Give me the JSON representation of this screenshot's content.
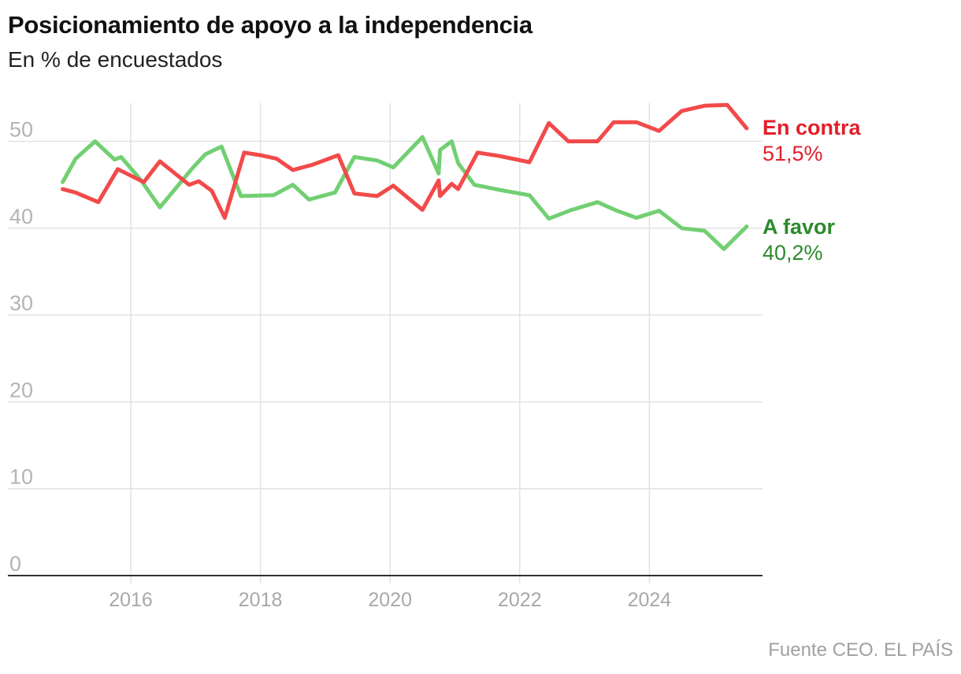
{
  "header": {
    "title": "Posicionamiento de apoyo a la independencia",
    "subtitle": "En % de encuestados"
  },
  "footer": {
    "source": "Fuente CEO. EL PAÍS"
  },
  "chart_data": {
    "type": "line",
    "title": "Posicionamiento de apoyo a la independencia",
    "subtitle": "En % de encuestados",
    "xlabel": "",
    "ylabel": "",
    "ylim": [
      0,
      55
    ],
    "xlim": [
      2014.6,
      2025.75
    ],
    "y_ticks": [
      "0",
      "10",
      "20",
      "30",
      "40",
      "50"
    ],
    "x_ticks": [
      "2016",
      "2018",
      "2020",
      "2022",
      "2024"
    ],
    "grid": true,
    "legend": "direct labels at right end of lines",
    "series": [
      {
        "name": "En contra",
        "end_label": "51,5%",
        "color": "#f24a4a",
        "label_color": "#e0202a",
        "points": [
          [
            2014.95,
            44.5
          ],
          [
            2015.15,
            44.1
          ],
          [
            2015.5,
            43.0
          ],
          [
            2015.8,
            46.8
          ],
          [
            2016.2,
            45.3
          ],
          [
            2016.45,
            47.7
          ],
          [
            2016.9,
            45.0
          ],
          [
            2017.05,
            45.4
          ],
          [
            2017.25,
            44.3
          ],
          [
            2017.45,
            41.2
          ],
          [
            2017.75,
            48.7
          ],
          [
            2018.0,
            48.4
          ],
          [
            2018.25,
            48.0
          ],
          [
            2018.5,
            46.7
          ],
          [
            2018.8,
            47.3
          ],
          [
            2019.2,
            48.4
          ],
          [
            2019.45,
            44.0
          ],
          [
            2019.8,
            43.7
          ],
          [
            2020.05,
            44.9
          ],
          [
            2020.5,
            42.1
          ],
          [
            2020.75,
            45.5
          ],
          [
            2020.77,
            43.7
          ],
          [
            2020.95,
            45.1
          ],
          [
            2021.05,
            44.5
          ],
          [
            2021.35,
            48.7
          ],
          [
            2021.7,
            48.3
          ],
          [
            2022.15,
            47.6
          ],
          [
            2022.45,
            52.1
          ],
          [
            2022.75,
            50.0
          ],
          [
            2023.2,
            50.0
          ],
          [
            2023.45,
            52.2
          ],
          [
            2023.8,
            52.2
          ],
          [
            2024.15,
            51.2
          ],
          [
            2024.5,
            53.5
          ],
          [
            2024.85,
            54.1
          ],
          [
            2025.2,
            54.2
          ],
          [
            2025.5,
            51.5
          ]
        ]
      },
      {
        "name": "A favor",
        "end_label": "40,2%",
        "color": "#72cf72",
        "label_color": "#2c8a2c",
        "points": [
          [
            2014.95,
            45.3
          ],
          [
            2015.15,
            48.0
          ],
          [
            2015.45,
            50.0
          ],
          [
            2015.75,
            47.9
          ],
          [
            2015.85,
            48.2
          ],
          [
            2016.15,
            45.6
          ],
          [
            2016.45,
            42.4
          ],
          [
            2016.95,
            46.9
          ],
          [
            2017.15,
            48.5
          ],
          [
            2017.4,
            49.4
          ],
          [
            2017.7,
            43.7
          ],
          [
            2018.2,
            43.8
          ],
          [
            2018.5,
            45.0
          ],
          [
            2018.75,
            43.3
          ],
          [
            2019.15,
            44.1
          ],
          [
            2019.45,
            48.2
          ],
          [
            2019.8,
            47.8
          ],
          [
            2020.05,
            47.0
          ],
          [
            2020.5,
            50.5
          ],
          [
            2020.75,
            46.3
          ],
          [
            2020.77,
            49.0
          ],
          [
            2020.95,
            50.0
          ],
          [
            2021.05,
            47.5
          ],
          [
            2021.3,
            45.0
          ],
          [
            2021.7,
            44.4
          ],
          [
            2022.15,
            43.8
          ],
          [
            2022.45,
            41.1
          ],
          [
            2022.8,
            42.1
          ],
          [
            2023.2,
            43.0
          ],
          [
            2023.5,
            42.0
          ],
          [
            2023.8,
            41.2
          ],
          [
            2024.15,
            42.0
          ],
          [
            2024.5,
            40.0
          ],
          [
            2024.85,
            39.7
          ],
          [
            2025.15,
            37.6
          ],
          [
            2025.5,
            40.2
          ]
        ]
      }
    ]
  }
}
